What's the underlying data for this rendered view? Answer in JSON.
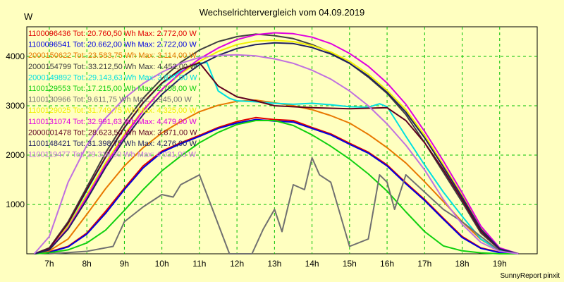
{
  "chart_data": {
    "type": "line",
    "title": "Wechselrichtervergleich vom 04.09.2019",
    "ylabel": "W",
    "footer": "SunnyReport pinxit",
    "xlim": [
      6.4,
      20.0
    ],
    "ylim": [
      0,
      4600
    ],
    "x_ticks": [
      7,
      8,
      9,
      10,
      11,
      12,
      13,
      14,
      15,
      16,
      17,
      18,
      19
    ],
    "x_tick_labels": [
      "7h",
      "8h",
      "9h",
      "10h",
      "11h",
      "12h",
      "13h",
      "14h",
      "15h",
      "16h",
      "17h",
      "18h",
      "19h"
    ],
    "y_ticks": [
      1000,
      2000,
      3000,
      4000
    ],
    "y_tick_labels": [
      "1000",
      "2000",
      "3000",
      "4000"
    ],
    "grid": true,
    "legend_position": "top-left",
    "legend": [
      "1100096436 Tot: 20.760,50 Wh Max: 2.772,00 W",
      "1100096541 Tot: 20.662,00 Wh Max: 2.722,00 W",
      "2000150622 Tot: 23.583,75 Wh Max: 3.114,00 W",
      "2000154799 Tot: 33.212,50 Wh Max: 4.452,00 W",
      "2000149892 Tot: 29.143,63 Wh Max: 3.877,00 W",
      "1100129553 Tot: 17.215,00 Wh Max: 2.708,00 W",
      "1100130966 Tot: 9.611,75 Wh Max: 1.945,00 W",
      "1100129025 Tot: 31.749,75 Wh Max: 4.325,00 W",
      "1100131074 Tot: 32.991,63 Wh Max: 4.479,00 W",
      "2000001478 Tot: 28.623,50 Wh Max: 3.871,00 W",
      "1100148421 Tot: 31.398,75 Wh Max: 4.276,00 W",
      "1100119477 Tot: 29.318,50 Wh Max: 4.031,00 W"
    ],
    "series": [
      {
        "name": "1100096436",
        "color": "#e00000",
        "x": [
          6.6,
          7.0,
          7.5,
          8.0,
          8.5,
          9.0,
          9.5,
          10.0,
          10.5,
          11.0,
          11.5,
          12.0,
          12.5,
          13.0,
          13.5,
          14.0,
          14.5,
          15.0,
          15.5,
          16.0,
          16.5,
          17.0,
          17.5,
          18.0,
          18.5,
          19.0,
          19.5
        ],
        "y": [
          0,
          40,
          150,
          420,
          860,
          1330,
          1780,
          2080,
          2250,
          2400,
          2560,
          2680,
          2760,
          2720,
          2700,
          2560,
          2430,
          2240,
          2060,
          1800,
          1440,
          1100,
          720,
          350,
          120,
          30,
          0
        ]
      },
      {
        "name": "1100096541",
        "color": "#0000e0",
        "x": [
          6.6,
          7.0,
          7.5,
          8.0,
          8.5,
          9.0,
          9.5,
          10.0,
          10.5,
          11.0,
          11.5,
          12.0,
          12.5,
          13.0,
          13.5,
          14.0,
          14.5,
          15.0,
          15.5,
          16.0,
          16.5,
          17.0,
          17.5,
          18.0,
          18.5,
          19.0,
          19.5
        ],
        "y": [
          0,
          30,
          140,
          400,
          820,
          1300,
          1740,
          2060,
          2230,
          2380,
          2540,
          2650,
          2720,
          2690,
          2670,
          2540,
          2410,
          2220,
          2040,
          1780,
          1420,
          1080,
          700,
          330,
          110,
          25,
          0
        ]
      },
      {
        "name": "2000150622",
        "color": "#e87800",
        "x": [
          6.6,
          7.0,
          7.5,
          8.0,
          8.5,
          9.0,
          9.5,
          10.0,
          10.5,
          11.0,
          11.5,
          12.0,
          12.5,
          13.0,
          13.5,
          14.0,
          14.5,
          15.0,
          15.5,
          16.0,
          16.5,
          17.0,
          17.5,
          18.0,
          18.5,
          19.0,
          19.5
        ],
        "y": [
          0,
          60,
          300,
          800,
          1320,
          1780,
          2150,
          2450,
          2680,
          2880,
          3010,
          3090,
          3114,
          3060,
          3000,
          2920,
          2800,
          2650,
          2420,
          2150,
          1840,
          1460,
          1060,
          650,
          290,
          60,
          0
        ]
      },
      {
        "name": "2000154799",
        "color": "#404040",
        "x": [
          6.6,
          7.0,
          7.5,
          8.0,
          8.5,
          9.0,
          9.5,
          10.0,
          10.5,
          11.0,
          11.5,
          12.0,
          12.5,
          13.0,
          13.5,
          14.0,
          14.5,
          15.0,
          15.5,
          16.0,
          16.5,
          17.0,
          17.5,
          18.0,
          18.5,
          19.0,
          19.5
        ],
        "y": [
          0,
          120,
          650,
          1350,
          2050,
          2650,
          3150,
          3550,
          3880,
          4130,
          4300,
          4400,
          4452,
          4420,
          4360,
          4240,
          4080,
          3860,
          3580,
          3250,
          2820,
          2250,
          1650,
          1050,
          420,
          90,
          0
        ]
      },
      {
        "name": "2000149892",
        "color": "#00e0e0",
        "x": [
          6.6,
          7.0,
          7.5,
          8.0,
          8.5,
          9.0,
          9.5,
          10.0,
          10.5,
          11.0,
          11.2,
          11.5,
          11.8,
          12.0,
          12.5,
          13.0,
          13.5,
          14.0,
          14.5,
          15.0,
          15.5,
          15.8,
          16.0,
          16.5,
          17.0,
          17.5,
          18.0,
          18.5,
          19.0,
          19.5
        ],
        "y": [
          0,
          110,
          600,
          1280,
          1950,
          2550,
          3050,
          3450,
          3700,
          3860,
          3877,
          3300,
          3150,
          3100,
          3080,
          3050,
          3030,
          3050,
          3020,
          2980,
          2970,
          3040,
          2980,
          2380,
          1800,
          1250,
          760,
          300,
          60,
          0
        ]
      },
      {
        "name": "1100129553",
        "color": "#10d010",
        "x": [
          6.6,
          7.0,
          7.5,
          8.0,
          8.5,
          9.0,
          9.5,
          10.0,
          10.5,
          11.0,
          11.5,
          12.0,
          12.5,
          13.0,
          13.5,
          14.0,
          14.5,
          15.0,
          15.5,
          16.0,
          16.5,
          17.0,
          17.5,
          18.0,
          18.5,
          19.0,
          19.5
        ],
        "y": [
          0,
          20,
          80,
          220,
          480,
          880,
          1300,
          1680,
          1980,
          2250,
          2460,
          2620,
          2700,
          2700,
          2600,
          2410,
          2180,
          1920,
          1620,
          1270,
          850,
          450,
          160,
          60,
          20,
          0,
          0
        ]
      },
      {
        "name": "1100130966",
        "color": "#707070",
        "x": [
          7.0,
          8.0,
          8.7,
          9.0,
          9.5,
          10.0,
          10.3,
          10.5,
          11.0,
          11.2,
          11.4,
          11.8,
          12.0,
          12.4,
          12.7,
          13.0,
          13.2,
          13.5,
          13.8,
          14.0,
          14.2,
          14.5,
          15.0,
          15.5,
          15.8,
          16.0,
          16.2,
          16.5,
          17.0,
          17.5,
          18.0,
          18.5,
          19.0
        ],
        "y": [
          0,
          50,
          150,
          650,
          950,
          1200,
          1150,
          1400,
          1600,
          1200,
          800,
          0,
          0,
          0,
          500,
          900,
          450,
          1400,
          1300,
          1945,
          1600,
          1450,
          150,
          300,
          1600,
          1450,
          900,
          1600,
          1250,
          900,
          650,
          350,
          60
        ]
      },
      {
        "name": "1100129025",
        "color": "#f0f000",
        "x": [
          6.6,
          7.0,
          7.5,
          8.0,
          8.5,
          9.0,
          9.5,
          10.0,
          10.5,
          11.0,
          11.5,
          12.0,
          12.5,
          13.0,
          13.5,
          14.0,
          14.5,
          15.0,
          15.5,
          16.0,
          16.5,
          17.0,
          17.5,
          18.0,
          18.5,
          19.0,
          19.5
        ],
        "y": [
          0,
          100,
          560,
          1200,
          1850,
          2420,
          2920,
          3330,
          3650,
          3900,
          4100,
          4240,
          4310,
          4325,
          4300,
          4220,
          4090,
          3900,
          3640,
          3310,
          2920,
          2400,
          1800,
          1180,
          520,
          110,
          0
        ]
      },
      {
        "name": "1100131074",
        "color": "#e000e0",
        "x": [
          6.6,
          7.0,
          7.5,
          8.0,
          8.5,
          9.0,
          9.5,
          10.0,
          10.5,
          11.0,
          11.5,
          12.0,
          12.5,
          13.0,
          13.5,
          14.0,
          14.5,
          15.0,
          15.5,
          16.0,
          16.5,
          17.0,
          17.5,
          18.0,
          18.5,
          19.0,
          19.5
        ],
        "y": [
          0,
          90,
          520,
          1150,
          1800,
          2380,
          2900,
          3330,
          3670,
          3950,
          4170,
          4340,
          4440,
          4479,
          4460,
          4390,
          4260,
          4060,
          3800,
          3460,
          3030,
          2480,
          1880,
          1240,
          560,
          120,
          0
        ]
      },
      {
        "name": "2000001478",
        "color": "#600020",
        "x": [
          6.6,
          7.0,
          7.5,
          8.0,
          8.5,
          9.0,
          9.5,
          10.0,
          10.5,
          11.0,
          11.5,
          12.0,
          12.5,
          13.0,
          13.5,
          14.0,
          14.5,
          15.0,
          15.5,
          16.0,
          16.5,
          17.0,
          17.5,
          18.0,
          18.5,
          19.0,
          19.5
        ],
        "y": [
          0,
          110,
          620,
          1300,
          1960,
          2560,
          3060,
          3460,
          3740,
          3871,
          3400,
          3180,
          3100,
          3000,
          2980,
          2960,
          2950,
          2940,
          2950,
          2960,
          2700,
          2250,
          1700,
          1100,
          460,
          90,
          0
        ]
      },
      {
        "name": "1100148421",
        "color": "#202060",
        "x": [
          6.6,
          7.0,
          7.5,
          8.0,
          8.5,
          9.0,
          9.5,
          10.0,
          10.5,
          11.0,
          11.5,
          12.0,
          12.5,
          13.0,
          13.5,
          14.0,
          14.5,
          15.0,
          15.5,
          16.0,
          16.5,
          17.0,
          17.5,
          18.0,
          18.5,
          19.0,
          19.5
        ],
        "y": [
          0,
          80,
          500,
          1100,
          1750,
          2320,
          2820,
          3230,
          3560,
          3830,
          4020,
          4160,
          4240,
          4276,
          4260,
          4180,
          4050,
          3860,
          3600,
          3270,
          2870,
          2350,
          1760,
          1150,
          500,
          100,
          0
        ]
      },
      {
        "name": "1100119477",
        "color": "#c070e0",
        "x": [
          6.6,
          7.0,
          7.5,
          8.0,
          8.5,
          9.0,
          9.5,
          10.0,
          10.5,
          11.0,
          11.5,
          12.0,
          12.5,
          13.0,
          13.5,
          14.0,
          14.5,
          15.0,
          15.5,
          16.0,
          16.5,
          17.0,
          17.5,
          18.0,
          18.5,
          19.0,
          19.5
        ],
        "y": [
          0,
          350,
          1450,
          2200,
          2750,
          3150,
          3450,
          3680,
          3860,
          3980,
          4020,
          4031,
          4010,
          3950,
          3860,
          3720,
          3540,
          3300,
          3000,
          2630,
          2200,
          1700,
          1100,
          600,
          230,
          50,
          0
        ]
      }
    ]
  }
}
